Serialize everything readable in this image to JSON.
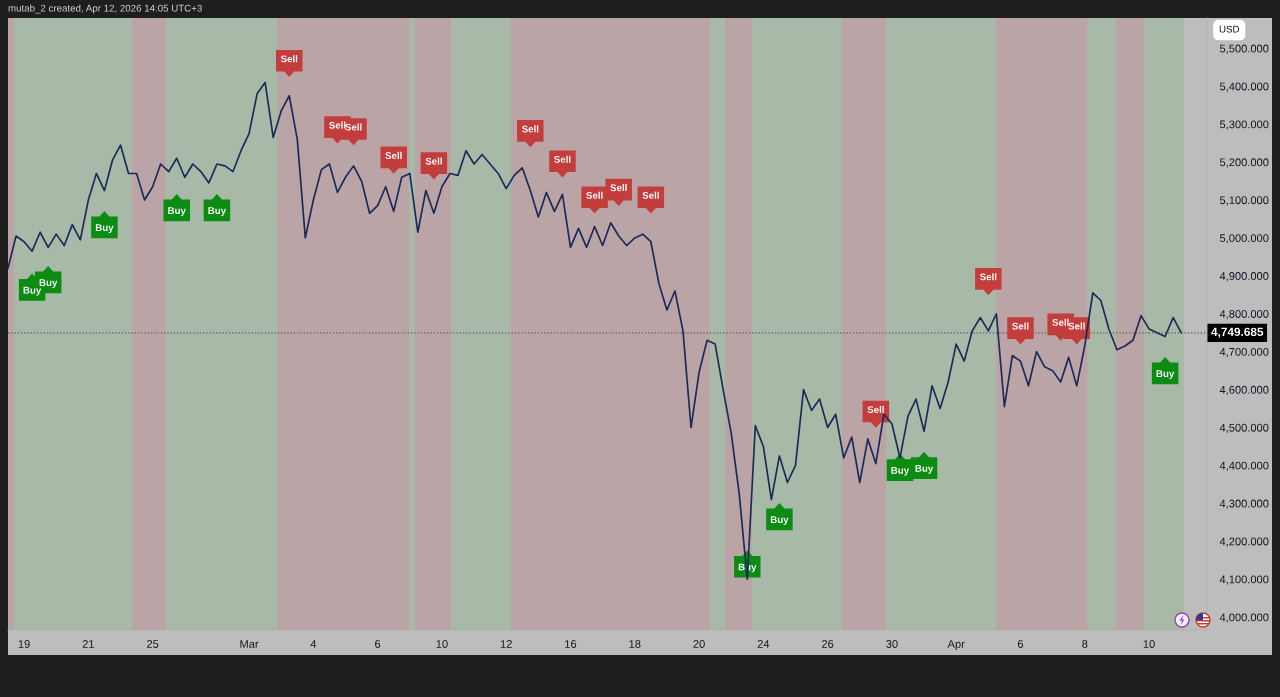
{
  "chart_data": {
    "type": "line",
    "annotations": [
      "mutab_2 created, Apr 12, 2026 14:05 UTC+3"
    ],
    "ylabel": "USD",
    "ylim": [
      3966,
      5580
    ],
    "yticks": [
      {
        "value": 4000,
        "label": "4,000.000"
      },
      {
        "value": 4100,
        "label": "4,100.000"
      },
      {
        "value": 4200,
        "label": "4,200.000"
      },
      {
        "value": 4300,
        "label": "4,300.000"
      },
      {
        "value": 4400,
        "label": "4,400.000"
      },
      {
        "value": 4500,
        "label": "4,500.000"
      },
      {
        "value": 4600,
        "label": "4,600.000"
      },
      {
        "value": 4700,
        "label": "4,700.000"
      },
      {
        "value": 4800,
        "label": "4,800.000"
      },
      {
        "value": 4900,
        "label": "4,900.000"
      },
      {
        "value": 5000,
        "label": "5,000.000"
      },
      {
        "value": 5100,
        "label": "5,100.000"
      },
      {
        "value": 5200,
        "label": "5,200.000"
      },
      {
        "value": 5300,
        "label": "5,300.000"
      },
      {
        "value": 5400,
        "label": "5,400.000"
      },
      {
        "value": 5500,
        "label": "5,500.000"
      }
    ],
    "categories": [
      null,
      null,
      "19",
      null,
      null,
      null,
      null,
      null,
      null,
      null,
      "21",
      null,
      null,
      null,
      null,
      null,
      null,
      null,
      "25",
      null,
      null,
      null,
      null,
      null,
      null,
      null,
      null,
      null,
      null,
      null,
      "Mar",
      null,
      null,
      null,
      null,
      null,
      null,
      null,
      "4",
      null,
      null,
      null,
      null,
      null,
      null,
      null,
      "6",
      null,
      null,
      null,
      null,
      null,
      null,
      null,
      "10",
      null,
      null,
      null,
      null,
      null,
      null,
      null,
      "12",
      null,
      null,
      null,
      null,
      null,
      null,
      null,
      "16",
      null,
      null,
      null,
      null,
      null,
      null,
      null,
      "18",
      null,
      null,
      null,
      null,
      null,
      null,
      null,
      "20",
      null,
      null,
      null,
      null,
      null,
      null,
      null,
      "24",
      null,
      null,
      null,
      null,
      null,
      null,
      null,
      "26",
      null,
      null,
      null,
      null,
      null,
      null,
      null,
      "30",
      null,
      null,
      null,
      null,
      null,
      null,
      null,
      "Apr",
      null,
      null,
      null,
      null,
      null,
      null,
      null,
      "6",
      null,
      null,
      null,
      null,
      null,
      null,
      null,
      "8",
      null,
      null,
      null,
      null,
      null,
      null,
      null,
      "10",
      null,
      null,
      null,
      null
    ],
    "ref_lines": [
      {
        "axis": "y",
        "value": 4749.685,
        "label": "4,749.685",
        "color": "#5a5a5a",
        "line_style": "dotted"
      }
    ],
    "series": [
      {
        "color": "#1c2a5a",
        "values": [
          4920,
          5005,
          4990,
          4965,
          5015,
          4975,
          5010,
          4980,
          5035,
          4995,
          5100,
          5170,
          5125,
          5205,
          5245,
          5170,
          5170,
          5100,
          5135,
          5195,
          5175,
          5210,
          5160,
          5195,
          5175,
          5145,
          5195,
          5190,
          5175,
          5230,
          5275,
          5380,
          5410,
          5265,
          5335,
          5375,
          5260,
          5000,
          5100,
          5180,
          5195,
          5120,
          5160,
          5190,
          5150,
          5065,
          5085,
          5135,
          5070,
          5160,
          5170,
          5015,
          5125,
          5065,
          5135,
          5170,
          5165,
          5230,
          5195,
          5220,
          5195,
          5170,
          5130,
          5165,
          5185,
          5125,
          5055,
          5120,
          5070,
          5115,
          4975,
          5025,
          4975,
          5030,
          4980,
          5040,
          5005,
          4980,
          5000,
          5010,
          4990,
          4880,
          4810,
          4860,
          4755,
          4500,
          4645,
          4730,
          4720,
          4600,
          4485,
          4325,
          4100,
          4505,
          4450,
          4310,
          4425,
          4355,
          4400,
          4600,
          4545,
          4575,
          4500,
          4535,
          4420,
          4475,
          4355,
          4470,
          4405,
          4535,
          4510,
          4420,
          4530,
          4575,
          4490,
          4610,
          4550,
          4620,
          4720,
          4675,
          4755,
          4790,
          4755,
          4800,
          4555,
          4690,
          4675,
          4610,
          4700,
          4660,
          4650,
          4620,
          4685,
          4610,
          4715,
          4855,
          4835,
          4760,
          4705,
          4715,
          4730,
          4795,
          4760,
          4750,
          4740,
          4790,
          4750
        ]
      },
      {
        "type": "scatter",
        "name": "Buy",
        "color": "#0c8c12",
        "values": [
          null,
          null,
          null,
          4870,
          null,
          4890,
          null,
          null,
          null,
          null,
          null,
          null,
          5035,
          null,
          null,
          null,
          null,
          null,
          null,
          null,
          null,
          5080,
          null,
          null,
          null,
          null,
          5080,
          null,
          null,
          null,
          null,
          null,
          null,
          null,
          null,
          null,
          null,
          null,
          null,
          null,
          null,
          null,
          null,
          null,
          null,
          null,
          null,
          null,
          null,
          null,
          null,
          null,
          null,
          null,
          null,
          null,
          null,
          null,
          null,
          null,
          null,
          null,
          null,
          null,
          null,
          null,
          null,
          null,
          null,
          null,
          null,
          null,
          null,
          null,
          null,
          null,
          null,
          null,
          null,
          null,
          null,
          null,
          null,
          null,
          null,
          null,
          null,
          null,
          null,
          null,
          null,
          null,
          4140,
          null,
          null,
          null,
          4265,
          null,
          null,
          null,
          null,
          null,
          null,
          null,
          null,
          null,
          null,
          null,
          null,
          null,
          null,
          4395,
          null,
          null,
          4400,
          null,
          null,
          null,
          null,
          null,
          null,
          null,
          null,
          null,
          null,
          null,
          null,
          null,
          null,
          null,
          null,
          null,
          null,
          null,
          null,
          null,
          null,
          null,
          null,
          null,
          null,
          null,
          null,
          null,
          4650,
          null,
          null
        ]
      },
      {
        "type": "scatter",
        "name": "Sell",
        "color": "#c43d3d",
        "values": [
          null,
          null,
          null,
          null,
          null,
          null,
          null,
          null,
          null,
          null,
          null,
          null,
          null,
          null,
          null,
          null,
          null,
          null,
          null,
          null,
          null,
          null,
          null,
          null,
          null,
          null,
          null,
          null,
          null,
          null,
          null,
          null,
          null,
          null,
          null,
          5460,
          null,
          null,
          null,
          null,
          null,
          5285,
          null,
          5280,
          null,
          null,
          null,
          null,
          5205,
          null,
          null,
          null,
          null,
          5190,
          null,
          null,
          null,
          null,
          null,
          null,
          null,
          null,
          null,
          null,
          null,
          5275,
          null,
          null,
          null,
          5195,
          null,
          null,
          null,
          5100,
          null,
          null,
          5120,
          null,
          null,
          null,
          5100,
          null,
          null,
          null,
          null,
          null,
          null,
          null,
          null,
          null,
          null,
          null,
          null,
          null,
          null,
          null,
          null,
          null,
          null,
          null,
          null,
          null,
          null,
          null,
          null,
          null,
          null,
          null,
          4535,
          null,
          null,
          null,
          null,
          null,
          null,
          null,
          null,
          null,
          null,
          null,
          null,
          null,
          4885,
          null,
          null,
          null,
          4755,
          null,
          null,
          null,
          null,
          4765,
          null,
          4755,
          null,
          null,
          null,
          null,
          null,
          null,
          null,
          null,
          null,
          null,
          null,
          null,
          null
        ]
      }
    ]
  }
}
